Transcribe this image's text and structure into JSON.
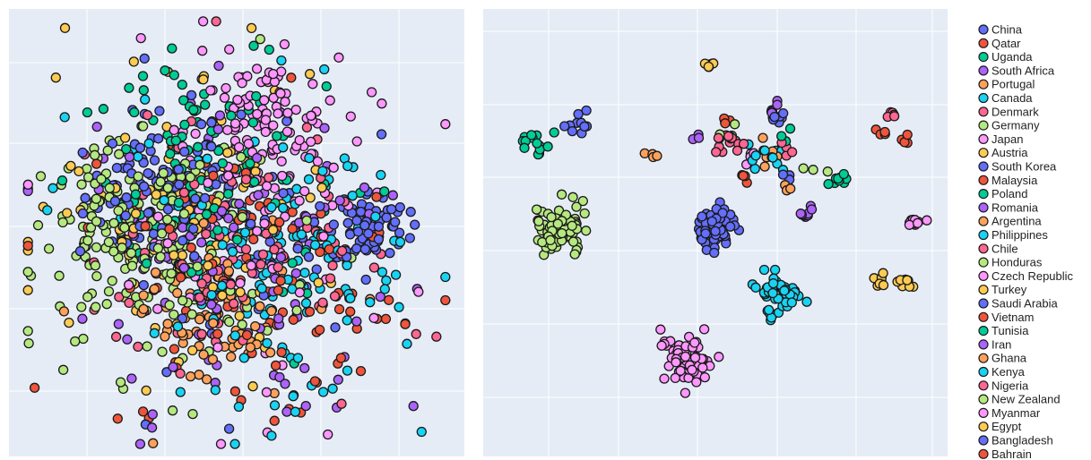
{
  "chart_data": {
    "type": "scatter",
    "title": "",
    "legend_placement": "right",
    "grid": true,
    "background": "#E5ECF6",
    "series": [
      {
        "name": "China",
        "color": "#636EFA",
        "left_center": [
          -1.3,
          0.6
        ],
        "left_spread": 0.55,
        "left_count": 90,
        "right_center": [
          -2.1,
          1.75
        ],
        "right_spread": 0.09,
        "right_count": 10
      },
      {
        "name": "Qatar",
        "color": "#EF553B",
        "left_center": [
          0.4,
          -1.2
        ],
        "left_spread": 1.2,
        "left_count": 40,
        "right_center": [
          0.15,
          1.78
        ],
        "right_spread": 0.04,
        "right_count": 4
      },
      {
        "name": "Uganda",
        "color": "#00CC96",
        "left_center": [
          -0.8,
          1.6
        ],
        "left_spread": 0.9,
        "left_count": 45,
        "right_center": [
          -2.8,
          1.45
        ],
        "right_spread": 0.12,
        "right_count": 15
      },
      {
        "name": "South Africa",
        "color": "#AB63FA",
        "left_center": [
          -0.2,
          -0.6
        ],
        "left_spread": 1.1,
        "left_count": 50,
        "right_center": [
          0.9,
          1.95
        ],
        "right_spread": 0.06,
        "right_count": 8
      },
      {
        "name": "Portugal",
        "color": "#FFA15A",
        "left_center": [
          -0.2,
          -1.4
        ],
        "left_spread": 0.45,
        "left_count": 35,
        "right_center": [
          0.9,
          1.25
        ],
        "right_spread": 0.1,
        "right_count": 6
      },
      {
        "name": "Canada",
        "color": "#19D3F3",
        "left_center": [
          0.9,
          -0.9
        ],
        "left_spread": 0.9,
        "left_count": 70,
        "right_center": [
          1.0,
          -1.0
        ],
        "right_spread": 0.16,
        "right_count": 50
      },
      {
        "name": "Denmark",
        "color": "#FF6692",
        "left_center": [
          0.2,
          -0.4
        ],
        "left_spread": 1.2,
        "left_count": 40,
        "right_center": [
          0.2,
          1.45
        ],
        "right_spread": 0.1,
        "right_count": 15
      },
      {
        "name": "Germany",
        "color": "#B6E880",
        "left_center": [
          -1.7,
          0.0
        ],
        "left_spread": 0.7,
        "left_count": 110,
        "right_center": [
          -2.4,
          0.05
        ],
        "right_spread": 0.22,
        "right_count": 90
      },
      {
        "name": "Japan",
        "color": "#FF97FF",
        "left_center": [
          0.4,
          1.6
        ],
        "left_spread": 0.6,
        "left_count": 120,
        "right_center": [
          -0.45,
          -2.05
        ],
        "right_spread": 0.2,
        "right_count": 80
      },
      {
        "name": "Austria",
        "color": "#FECB52",
        "left_center": [
          -0.6,
          -0.3
        ],
        "left_spread": 1.2,
        "left_count": 40,
        "right_center": [
          2.55,
          -0.8
        ],
        "right_spread": 0.05,
        "right_count": 8
      },
      {
        "name": "South Korea",
        "color": "#636EFA",
        "left_center": [
          2.1,
          0.1
        ],
        "left_spread": 0.3,
        "left_count": 80,
        "right_center": [
          0.0,
          0.1
        ],
        "right_spread": 0.16,
        "right_count": 70
      },
      {
        "name": "Malaysia",
        "color": "#EF553B",
        "left_center": [
          0.2,
          -0.9
        ],
        "left_spread": 1.1,
        "left_count": 25,
        "right_center": [
          0.55,
          0.92
        ],
        "right_spread": 0.08,
        "right_count": 4
      },
      {
        "name": "Poland",
        "color": "#00CC96",
        "left_center": [
          -0.5,
          0.2
        ],
        "left_spread": 1.2,
        "left_count": 30,
        "right_center": [
          1.9,
          0.85
        ],
        "right_spread": 0.07,
        "right_count": 10
      },
      {
        "name": "Romania",
        "color": "#AB63FA",
        "left_center": [
          -0.2,
          -0.6
        ],
        "left_spread": 1.2,
        "left_count": 30,
        "right_center": [
          1.4,
          0.3
        ],
        "right_spread": 0.05,
        "right_count": 8
      },
      {
        "name": "Argentina",
        "color": "#FFA15A",
        "left_center": [
          -0.5,
          -1.2
        ],
        "left_spread": 0.5,
        "left_count": 25,
        "right_center": [
          -1.0,
          1.25
        ],
        "right_spread": 0.05,
        "right_count": 4
      },
      {
        "name": "Philippines",
        "color": "#19D3F3",
        "left_center": [
          -0.3,
          0.2
        ],
        "left_spread": 1.2,
        "left_count": 40,
        "right_center": [
          0.9,
          1.2
        ],
        "right_spread": 0.15,
        "right_count": 8
      },
      {
        "name": "Chile",
        "color": "#FF6692",
        "left_center": [
          0.1,
          -0.5
        ],
        "left_spread": 1.2,
        "left_count": 25,
        "right_center": [
          1.05,
          1.3
        ],
        "right_spread": 0.06,
        "right_count": 5
      },
      {
        "name": "Honduras",
        "color": "#B6E880",
        "left_center": [
          -1.2,
          -0.3
        ],
        "left_spread": 1.0,
        "left_count": 70,
        "right_center": [
          0.2,
          1.6
        ],
        "right_spread": 0.05,
        "right_count": 3
      },
      {
        "name": "Czech Republic",
        "color": "#FF97FF",
        "left_center": [
          0.3,
          0.3
        ],
        "left_spread": 1.2,
        "left_count": 40,
        "right_center": [
          3.05,
          0.15
        ],
        "right_spread": 0.06,
        "right_count": 10
      },
      {
        "name": "Turkey",
        "color": "#FECB52",
        "left_center": [
          -0.8,
          0.6
        ],
        "left_spread": 1.2,
        "left_count": 30,
        "right_center": [
          -0.05,
          2.72
        ],
        "right_spread": 0.04,
        "right_count": 6
      },
      {
        "name": "Saudi Arabia",
        "color": "#636EFA",
        "left_center": [
          0.2,
          0.3
        ],
        "left_spread": 1.2,
        "left_count": 30,
        "right_center": [
          0.95,
          1.9
        ],
        "right_spread": 0.06,
        "right_count": 6
      },
      {
        "name": "Vietnam",
        "color": "#EF553B",
        "left_center": [
          0.2,
          -0.4
        ],
        "left_spread": 1.2,
        "left_count": 20,
        "right_center": [
          2.55,
          1.55
        ],
        "right_spread": 0.07,
        "right_count": 4
      },
      {
        "name": "Tunisia",
        "color": "#00CC96",
        "left_center": [
          -0.7,
          1.2
        ],
        "left_spread": 0.8,
        "left_count": 25,
        "right_center": [
          1.1,
          1.5
        ],
        "right_spread": 0.06,
        "right_count": 4
      },
      {
        "name": "Iran",
        "color": "#AB63FA",
        "left_center": [
          0.0,
          -0.2
        ],
        "left_spread": 1.2,
        "left_count": 25,
        "right_center": [
          -0.3,
          1.5
        ],
        "right_spread": 0.04,
        "right_count": 3
      },
      {
        "name": "Ghana",
        "color": "#FFA15A",
        "left_center": [
          -0.1,
          -1.0
        ],
        "left_spread": 1.1,
        "left_count": 20,
        "right_center": [
          1.1,
          0.75
        ],
        "right_spread": 0.04,
        "right_count": 3
      },
      {
        "name": "Kenya",
        "color": "#19D3F3",
        "left_center": [
          0.7,
          -0.4
        ],
        "left_spread": 1.0,
        "left_count": 30,
        "right_center": [
          0.6,
          1.2
        ],
        "right_spread": 0.12,
        "right_count": 5
      },
      {
        "name": "Nigeria",
        "color": "#FF6692",
        "left_center": [
          -0.1,
          -0.8
        ],
        "left_spread": 1.2,
        "left_count": 25,
        "right_center": [
          2.75,
          1.85
        ],
        "right_spread": 0.05,
        "right_count": 5
      },
      {
        "name": "New Zealand",
        "color": "#B6E880",
        "left_center": [
          -1.0,
          0.0
        ],
        "left_spread": 1.2,
        "left_count": 30,
        "right_center": [
          1.5,
          1.1
        ],
        "right_spread": 0.2,
        "right_count": 3
      },
      {
        "name": "Myanmar",
        "color": "#FF97FF",
        "left_center": [
          0.0,
          0.0
        ],
        "left_spread": 1.3,
        "left_count": 30,
        "right_center": [
          0.5,
          1.15
        ],
        "right_spread": 0.1,
        "right_count": 4
      },
      {
        "name": "Egypt",
        "color": "#FECB52",
        "left_center": [
          -0.8,
          -0.2
        ],
        "left_spread": 1.2,
        "left_count": 25,
        "right_center": [
          2.95,
          -0.83
        ],
        "right_spread": 0.06,
        "right_count": 10
      },
      {
        "name": "Bangladesh",
        "color": "#636EFA",
        "left_center": [
          0.3,
          -0.6
        ],
        "left_spread": 1.2,
        "left_count": 25,
        "right_center": [
          1.15,
          0.9
        ],
        "right_spread": 0.04,
        "right_count": 3
      },
      {
        "name": "Bahrain",
        "color": "#EF553B",
        "left_center": [
          0.5,
          -0.6
        ],
        "left_spread": 1.2,
        "left_count": 20,
        "right_center": [
          2.95,
          1.5
        ],
        "right_spread": 0.06,
        "right_count": 4
      }
    ]
  }
}
